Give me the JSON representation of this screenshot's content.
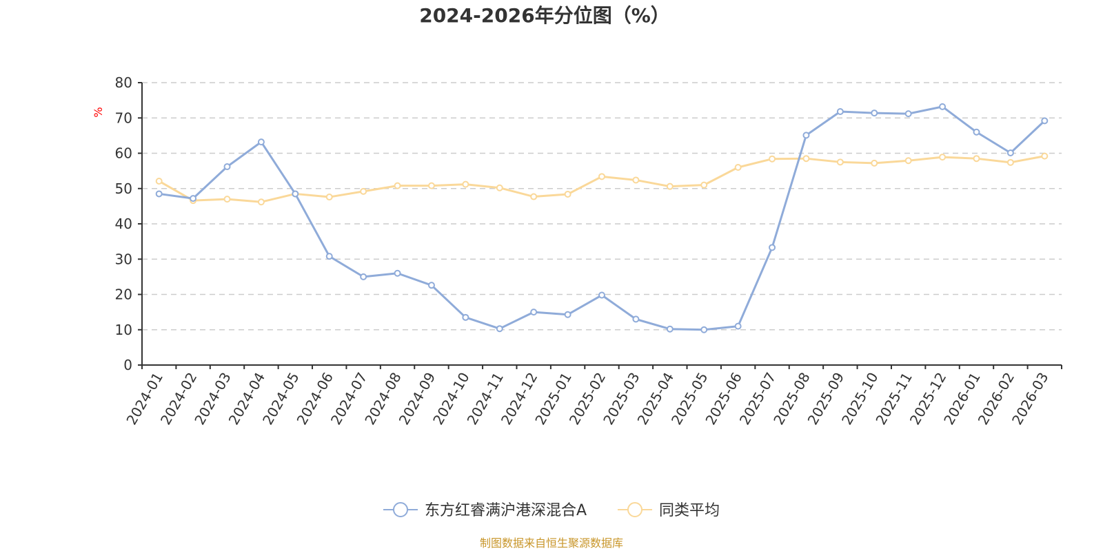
{
  "source_text": "制图数据来自恒生聚源数据库",
  "chart_data": {
    "type": "line",
    "title": "2024-2026年分位图（%）",
    "ylabel": "%",
    "xlabel": "",
    "ylim": [
      0,
      80
    ],
    "yticks": [
      0,
      10,
      20,
      30,
      40,
      50,
      60,
      70,
      80
    ],
    "grid": true,
    "legend_position": "bottom",
    "categories": [
      "2024-01",
      "2024-02",
      "2024-03",
      "2024-04",
      "2024-05",
      "2024-06",
      "2024-07",
      "2024-08",
      "2024-09",
      "2024-10",
      "2024-11",
      "2024-12",
      "2025-01",
      "2025-02",
      "2025-03",
      "2025-04",
      "2025-05",
      "2025-06",
      "2025-07",
      "2025-08",
      "2025-09",
      "2025-10",
      "2025-11",
      "2025-12",
      "2026-01",
      "2026-02",
      "2026-03"
    ],
    "series": [
      {
        "name": "东方红睿满沪港深混合A",
        "color": "#8fabd9",
        "values": [
          48.5,
          47.2,
          56.2,
          63.2,
          48.5,
          30.8,
          25.0,
          26.0,
          22.6,
          13.5,
          10.3,
          15.0,
          14.3,
          19.8,
          13.0,
          10.2,
          10.0,
          11.0,
          33.3,
          65.1,
          71.8,
          71.4,
          71.2,
          73.2,
          66.0,
          60.1,
          69.2
        ]
      },
      {
        "name": "同类平均",
        "color": "#fad899",
        "values": [
          52.1,
          46.6,
          47.0,
          46.2,
          48.5,
          47.6,
          49.2,
          50.8,
          50.8,
          51.2,
          50.2,
          47.7,
          48.4,
          53.4,
          52.4,
          50.6,
          51.0,
          56.0,
          58.4,
          58.5,
          57.5,
          57.2,
          57.9,
          58.9,
          58.5,
          57.4,
          59.2
        ]
      }
    ]
  }
}
